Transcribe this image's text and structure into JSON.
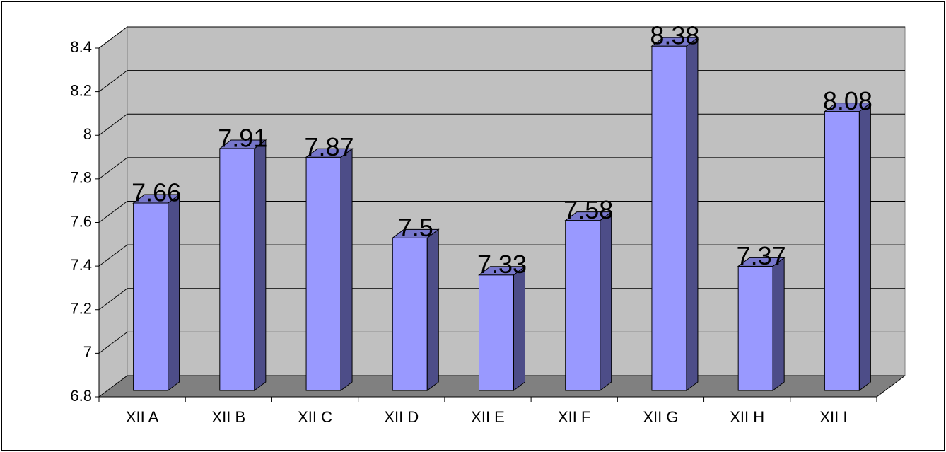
{
  "chart_data": {
    "type": "bar",
    "categories": [
      "XII A",
      "XII B",
      "XII C",
      "XII D",
      "XII E",
      "XII F",
      "XII G",
      "XII H",
      "XII I"
    ],
    "values": [
      7.66,
      7.91,
      7.87,
      7.5,
      7.33,
      7.58,
      8.38,
      7.37,
      8.08
    ],
    "color": "#9999ff",
    "ylim": [
      6.8,
      8.4
    ],
    "yticks": [
      6.8,
      7,
      7.2,
      7.4,
      7.6,
      7.8,
      8,
      8.2,
      8.4
    ],
    "grid": true
  }
}
